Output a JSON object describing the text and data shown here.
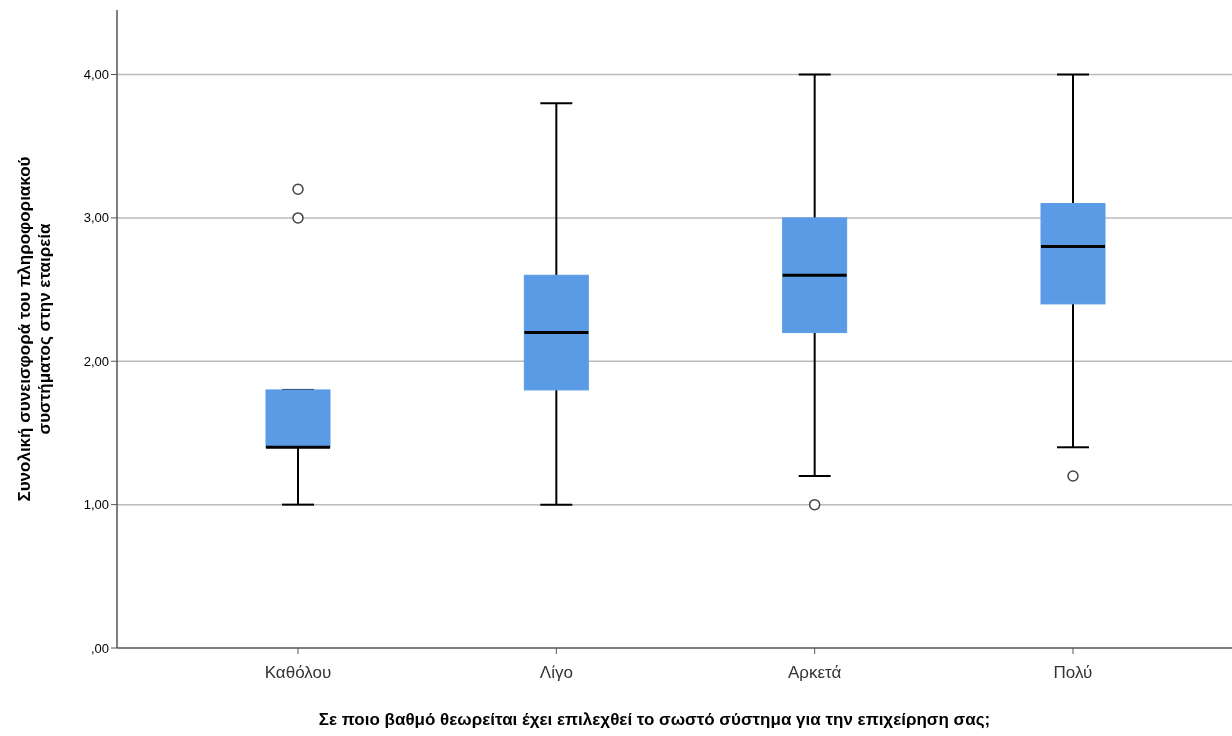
{
  "chart_data": {
    "type": "box",
    "xlabel": "Σε ποιο βαθμό θεωρείται έχει επιλεχθεί το σωστό σύστημα για την επιχείρηση σας;",
    "ylabel": "Συνολική συνεισφορά του πληροφοριακού\nσυστήματος στην εταιρεία",
    "categories": [
      "Καθόλου",
      "Λίγο",
      "Αρκετά",
      "Πολύ"
    ],
    "color": "#5b9be6",
    "boxes": [
      {
        "low": 1.0,
        "q1": 1.4,
        "median": 1.4,
        "q3": 1.8,
        "high": 1.8,
        "outliers": [
          3.0,
          3.2
        ]
      },
      {
        "low": 1.0,
        "q1": 1.8,
        "median": 2.2,
        "q3": 2.6,
        "high": 3.8
      },
      {
        "low": 1.2,
        "q1": 2.2,
        "median": 2.6,
        "q3": 3.0,
        "high": 4.0,
        "outliers": [
          1.0
        ]
      },
      {
        "low": 1.4,
        "q1": 2.4,
        "median": 2.8,
        "q3": 3.1,
        "high": 4.0,
        "outliers": [
          1.2
        ]
      }
    ],
    "ylim": [
      0,
      4.45
    ],
    "yticks": [
      {
        "value": 0,
        "label": ",00"
      },
      {
        "value": 1,
        "label": "1,00"
      },
      {
        "value": 2,
        "label": "2,00"
      },
      {
        "value": 3,
        "label": "3,00"
      },
      {
        "value": 4,
        "label": "4,00"
      }
    ],
    "grid": "y"
  }
}
